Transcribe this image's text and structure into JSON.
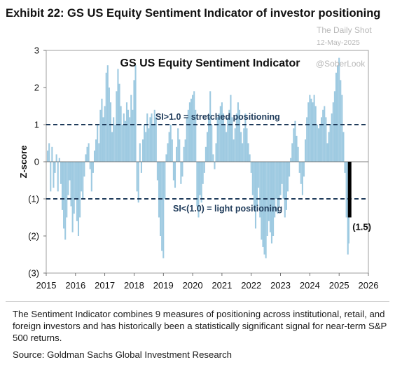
{
  "exhibit_title": "Exhibit 22: GS US Equity Sentiment Indicator of investor positioning",
  "watermark": {
    "source": "The Daily Shot",
    "date": "12-May-2025",
    "handle": "@SoberLook"
  },
  "caption": "The Sentiment Indicator combines 9 measures of positioning across institutional, retail, and foreign investors and has historically been a statistically significant signal for near-term S&P 500 returns.",
  "source": "Source: Goldman Sachs Global Investment Research",
  "colors": {
    "bars": "#9ecae1",
    "latest_bar": "#000000",
    "threshold_line": "#1f3b5a",
    "annotation_text": "#1f3b5a"
  },
  "chart_data": {
    "type": "bar",
    "title": "GS US Equity  Sentiment Indicator",
    "ylabel": "Z-score",
    "xlabel": "",
    "ylim": [
      -3,
      3
    ],
    "xlim": [
      2015,
      2026
    ],
    "y_ticks": [
      3,
      2,
      1,
      0,
      -1,
      -2,
      -3
    ],
    "y_tick_labels": [
      "3",
      "2",
      "1",
      "0",
      "(1)",
      "(2)",
      "(3)"
    ],
    "x_ticks": [
      2015,
      2016,
      2017,
      2018,
      2019,
      2020,
      2021,
      2022,
      2023,
      2024,
      2025,
      2026
    ],
    "x_tick_labels": [
      "2015",
      "2016",
      "2017",
      "2018",
      "2019",
      "2020",
      "2021",
      "2022",
      "2023",
      "2024",
      "2025",
      "2026"
    ],
    "grid": false,
    "legend": "none",
    "reference_lines": [
      {
        "y": 1.0,
        "label": "SI>1.0 = stretched positioning",
        "style": "dashed"
      },
      {
        "y": -1.0,
        "label": "SI<(1.0) = light positioning",
        "style": "dashed"
      }
    ],
    "latest": {
      "x": 2025.36,
      "value": -1.5,
      "label": "(1.5)"
    },
    "series": [
      {
        "name": "",
        "points": [
          [
            2015.05,
            0.3
          ],
          [
            2015.1,
            0.5
          ],
          [
            2015.15,
            -0.8
          ],
          [
            2015.2,
            0.4
          ],
          [
            2015.25,
            -0.7
          ],
          [
            2015.3,
            -0.3
          ],
          [
            2015.35,
            0.2
          ],
          [
            2015.4,
            -0.8
          ],
          [
            2015.45,
            0.1
          ],
          [
            2015.5,
            -0.6
          ],
          [
            2015.55,
            -1.3
          ],
          [
            2015.6,
            -1.8
          ],
          [
            2015.65,
            -2.1
          ],
          [
            2015.7,
            -1.5
          ],
          [
            2015.75,
            -0.9
          ],
          [
            2015.8,
            -0.5
          ],
          [
            2015.85,
            -1.2
          ],
          [
            2015.9,
            -1.9
          ],
          [
            2015.95,
            -1.4
          ],
          [
            2016.0,
            -1.0
          ],
          [
            2016.05,
            -1.6
          ],
          [
            2016.1,
            -2.0
          ],
          [
            2016.15,
            -1.5
          ],
          [
            2016.2,
            -0.8
          ],
          [
            2016.25,
            -1.0
          ],
          [
            2016.3,
            -0.4
          ],
          [
            2016.35,
            0.2
          ],
          [
            2016.4,
            0.4
          ],
          [
            2016.45,
            0.5
          ],
          [
            2016.5,
            -0.2
          ],
          [
            2016.55,
            -0.8
          ],
          [
            2016.6,
            -0.3
          ],
          [
            2016.65,
            0.3
          ],
          [
            2016.7,
            0.6
          ],
          [
            2016.75,
            1.0
          ],
          [
            2016.8,
            0.5
          ],
          [
            2016.85,
            1.4
          ],
          [
            2016.9,
            1.7
          ],
          [
            2016.95,
            1.2
          ],
          [
            2017.0,
            1.5
          ],
          [
            2017.05,
            2.4
          ],
          [
            2017.1,
            2.6
          ],
          [
            2017.15,
            2.0
          ],
          [
            2017.2,
            1.6
          ],
          [
            2017.25,
            0.8
          ],
          [
            2017.3,
            1.2
          ],
          [
            2017.35,
            1.0
          ],
          [
            2017.4,
            1.9
          ],
          [
            2017.45,
            2.5
          ],
          [
            2017.5,
            2.1
          ],
          [
            2017.55,
            1.5
          ],
          [
            2017.6,
            1.0
          ],
          [
            2017.65,
            1.3
          ],
          [
            2017.7,
            1.1
          ],
          [
            2017.75,
            1.6
          ],
          [
            2017.8,
            1.4
          ],
          [
            2017.85,
            1.2
          ],
          [
            2017.9,
            1.8
          ],
          [
            2017.95,
            1.4
          ],
          [
            2018.0,
            2.2
          ],
          [
            2018.05,
            2.6
          ],
          [
            2018.1,
            -0.8
          ],
          [
            2018.15,
            -1.1
          ],
          [
            2018.2,
            0.5
          ],
          [
            2018.25,
            -0.3
          ],
          [
            2018.3,
            0.6
          ],
          [
            2018.35,
            1.0
          ],
          [
            2018.4,
            0.8
          ],
          [
            2018.45,
            1.3
          ],
          [
            2018.5,
            0.9
          ],
          [
            2018.55,
            1.2
          ],
          [
            2018.6,
            1.3
          ],
          [
            2018.65,
            1.0
          ],
          [
            2018.7,
            1.4
          ],
          [
            2018.75,
            1.2
          ],
          [
            2018.8,
            -0.5
          ],
          [
            2018.85,
            -1.5
          ],
          [
            2018.9,
            -2.0
          ],
          [
            2018.95,
            -2.4
          ],
          [
            2019.0,
            -2.6
          ],
          [
            2019.05,
            -1.0
          ],
          [
            2019.1,
            0.2
          ],
          [
            2019.15,
            0.5
          ],
          [
            2019.2,
            0.8
          ],
          [
            2019.25,
            1.0
          ],
          [
            2019.3,
            0.6
          ],
          [
            2019.35,
            -0.5
          ],
          [
            2019.4,
            -0.7
          ],
          [
            2019.45,
            0.4
          ],
          [
            2019.5,
            0.9
          ],
          [
            2019.55,
            0.6
          ],
          [
            2019.6,
            -0.6
          ],
          [
            2019.65,
            -0.4
          ],
          [
            2019.7,
            0.4
          ],
          [
            2019.75,
            0.6
          ],
          [
            2019.8,
            1.2
          ],
          [
            2019.85,
            1.4
          ],
          [
            2019.9,
            1.6
          ],
          [
            2019.95,
            1.7
          ],
          [
            2020.0,
            1.8
          ],
          [
            2020.05,
            1.9
          ],
          [
            2020.1,
            1.4
          ],
          [
            2020.15,
            -1.2
          ],
          [
            2020.2,
            -1.5
          ],
          [
            2020.25,
            -0.9
          ],
          [
            2020.3,
            -1.1
          ],
          [
            2020.35,
            -0.6
          ],
          [
            2020.4,
            -0.3
          ],
          [
            2020.45,
            0.4
          ],
          [
            2020.5,
            0.8
          ],
          [
            2020.55,
            1.2
          ],
          [
            2020.6,
            1.9
          ],
          [
            2020.65,
            1.0
          ],
          [
            2020.7,
            0.2
          ],
          [
            2020.75,
            -0.2
          ],
          [
            2020.8,
            0.5
          ],
          [
            2020.85,
            1.2
          ],
          [
            2020.9,
            1.3
          ],
          [
            2020.95,
            1.5
          ],
          [
            2021.0,
            1.6
          ],
          [
            2021.05,
            1.3
          ],
          [
            2021.1,
            1.0
          ],
          [
            2021.15,
            0.8
          ],
          [
            2021.2,
            1.2
          ],
          [
            2021.25,
            1.4
          ],
          [
            2021.3,
            1.8
          ],
          [
            2021.35,
            1.2
          ],
          [
            2021.4,
            0.6
          ],
          [
            2021.45,
            0.9
          ],
          [
            2021.5,
            1.3
          ],
          [
            2021.55,
            1.6
          ],
          [
            2021.6,
            1.4
          ],
          [
            2021.65,
            0.8
          ],
          [
            2021.7,
            0.5
          ],
          [
            2021.75,
            0.9
          ],
          [
            2021.8,
            1.3
          ],
          [
            2021.85,
            0.9
          ],
          [
            2021.9,
            0.5
          ],
          [
            2021.95,
            0.2
          ],
          [
            2022.0,
            -0.3
          ],
          [
            2022.05,
            -0.9
          ],
          [
            2022.1,
            -1.3
          ],
          [
            2022.15,
            -1.8
          ],
          [
            2022.2,
            -1.2
          ],
          [
            2022.25,
            -0.7
          ],
          [
            2022.3,
            -1.5
          ],
          [
            2022.35,
            -2.1
          ],
          [
            2022.4,
            -2.3
          ],
          [
            2022.45,
            -2.5
          ],
          [
            2022.5,
            -2.6
          ],
          [
            2022.55,
            -2.0
          ],
          [
            2022.6,
            -1.6
          ],
          [
            2022.65,
            -1.9
          ],
          [
            2022.7,
            -2.2
          ],
          [
            2022.75,
            -2.0
          ],
          [
            2022.8,
            -1.5
          ],
          [
            2022.85,
            -1.0
          ],
          [
            2022.9,
            -1.4
          ],
          [
            2022.95,
            -1.2
          ],
          [
            2023.0,
            -0.9
          ],
          [
            2023.05,
            -0.6
          ],
          [
            2023.1,
            -1.0
          ],
          [
            2023.15,
            -1.5
          ],
          [
            2023.2,
            -1.3
          ],
          [
            2023.25,
            -0.8
          ],
          [
            2023.3,
            -0.4
          ],
          [
            2023.35,
            0.1
          ],
          [
            2023.4,
            0.5
          ],
          [
            2023.45,
            0.9
          ],
          [
            2023.5,
            1.1
          ],
          [
            2023.55,
            0.7
          ],
          [
            2023.6,
            0.4
          ],
          [
            2023.65,
            -0.3
          ],
          [
            2023.7,
            -0.6
          ],
          [
            2023.75,
            -0.9
          ],
          [
            2023.8,
            -0.4
          ],
          [
            2023.85,
            0.6
          ],
          [
            2023.9,
            1.2
          ],
          [
            2023.95,
            1.6
          ],
          [
            2024.0,
            1.8
          ],
          [
            2024.05,
            1.7
          ],
          [
            2024.1,
            1.6
          ],
          [
            2024.15,
            1.8
          ],
          [
            2024.2,
            1.5
          ],
          [
            2024.25,
            1.0
          ],
          [
            2024.3,
            0.9
          ],
          [
            2024.35,
            1.0
          ],
          [
            2024.4,
            1.2
          ],
          [
            2024.45,
            1.4
          ],
          [
            2024.5,
            1.5
          ],
          [
            2024.55,
            1.2
          ],
          [
            2024.6,
            0.5
          ],
          [
            2024.65,
            0.8
          ],
          [
            2024.7,
            1.0
          ],
          [
            2024.75,
            1.3
          ],
          [
            2024.8,
            1.6
          ],
          [
            2024.85,
            1.9
          ],
          [
            2024.9,
            2.4
          ],
          [
            2024.95,
            2.6
          ],
          [
            2025.0,
            2.8
          ],
          [
            2025.05,
            2.2
          ],
          [
            2025.1,
            1.8
          ],
          [
            2025.15,
            0.8
          ],
          [
            2025.2,
            -0.3
          ],
          [
            2025.25,
            -1.5
          ],
          [
            2025.3,
            -2.5
          ],
          [
            2025.33,
            -2.2
          ]
        ]
      }
    ]
  }
}
